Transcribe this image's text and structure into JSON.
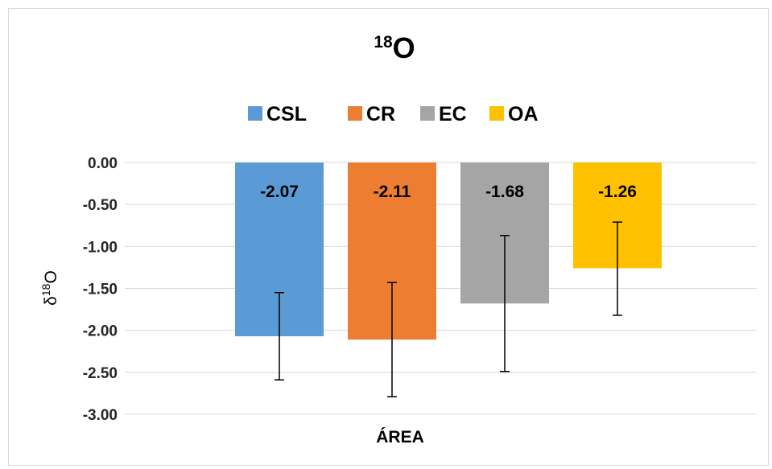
{
  "chart_data": {
    "type": "bar",
    "title": {
      "sup": "18",
      "main": "O"
    },
    "xlabel": "ÁREA",
    "ylabel": {
      "prefix": "δ",
      "sup": "18",
      "main": "O"
    },
    "ylim": [
      -3.0,
      0.0
    ],
    "yticks": [
      "0.00",
      "-0.50",
      "-1.00",
      "-1.50",
      "-2.00",
      "-2.50",
      "-3.00"
    ],
    "ytick_values": [
      0.0,
      -0.5,
      -1.0,
      -1.5,
      -2.0,
      -2.5,
      -3.0
    ],
    "grid": true,
    "legend_position": "top",
    "series": [
      {
        "name": "CSL",
        "value": -2.07,
        "label": "-2.07",
        "color": "#5b9bd5",
        "error_low": -2.59,
        "error_high": -1.55
      },
      {
        "name": "CR",
        "value": -2.11,
        "label": "-2.11",
        "color": "#ed7d31",
        "error_low": -2.79,
        "error_high": -1.43
      },
      {
        "name": "EC",
        "value": -1.68,
        "label": "-1.68",
        "color": "#a5a5a5",
        "error_low": -2.49,
        "error_high": -0.87
      },
      {
        "name": "OA",
        "value": -1.26,
        "label": "-1.26",
        "color": "#ffc000",
        "error_low": -1.82,
        "error_high": -0.71
      }
    ]
  }
}
